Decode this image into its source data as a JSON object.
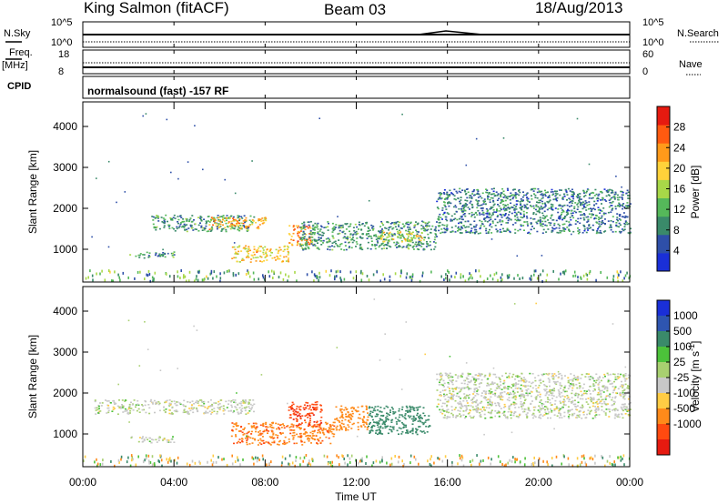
{
  "header": {
    "station": "King Salmon (fitACF)",
    "beam": "Beam 03",
    "date": "18/Aug/2013"
  },
  "top_panels": {
    "nsky_label": "N.Sky",
    "nsky_ticks": [
      "10^5",
      "10^0"
    ],
    "nsearch_label": "N.Search",
    "nsearch_ticks": [
      "10^5",
      "10^0"
    ],
    "freq_label": "Freq.",
    "freq_unit": "[MHz]",
    "freq_ticks": [
      "18",
      "8"
    ],
    "nave_label": "Nave",
    "nave_ticks": [
      "60",
      "0"
    ],
    "cpid_label": "CPID",
    "cpid_text": "normalsound (fast) -157 RF"
  },
  "chart_data": [
    {
      "type": "heatmap",
      "panel": "power",
      "ylabel": "Slant Range [km]",
      "xlabel": "",
      "xlim": [
        "00:00",
        "24:00"
      ],
      "ylim": [
        200,
        4600
      ],
      "y_ticks": [
        1000,
        2000,
        3000,
        4000
      ],
      "colorbar": {
        "label": "Power [dB]",
        "ticks": [
          4,
          8,
          12,
          16,
          20,
          24,
          28
        ],
        "range": [
          0,
          32
        ],
        "colors": [
          "#1a2fd8",
          "#2e4fa8",
          "#3a8a6a",
          "#55b85a",
          "#a8d848",
          "#ffd23a",
          "#ff9a1a",
          "#ff5a10",
          "#e61a10"
        ]
      },
      "echo_regions": [
        {
          "t_start": 3.0,
          "t_end": 7.5,
          "range_low": 1450,
          "range_high": 1850,
          "power_dB": 10
        },
        {
          "t_start": 5.5,
          "t_end": 8.0,
          "range_low": 1500,
          "range_high": 1800,
          "power_dB": 22
        },
        {
          "t_start": 6.5,
          "t_end": 9.0,
          "range_low": 700,
          "range_high": 1100,
          "power_dB": 20
        },
        {
          "t_start": 9.0,
          "t_end": 10.0,
          "range_low": 1100,
          "range_high": 1600,
          "power_dB": 24
        },
        {
          "t_start": 9.5,
          "t_end": 15.5,
          "range_low": 1000,
          "range_high": 1700,
          "power_dB": 10
        },
        {
          "t_start": 13.0,
          "t_end": 15.0,
          "range_low": 1200,
          "range_high": 1450,
          "power_dB": 18
        },
        {
          "t_start": 15.5,
          "t_end": 24.0,
          "range_low": 1400,
          "range_high": 2500,
          "power_dB": 8
        },
        {
          "t_start": 2.0,
          "t_end": 4.0,
          "range_low": 800,
          "range_high": 950,
          "power_dB": 10
        }
      ]
    },
    {
      "type": "heatmap",
      "panel": "velocity",
      "ylabel": "Slant Range [km]",
      "xlabel": "Time UT",
      "xlim": [
        "00:00",
        "24:00"
      ],
      "ylim": [
        200,
        4600
      ],
      "x_ticks": [
        "00:00",
        "04:00",
        "08:00",
        "12:00",
        "16:00",
        "20:00",
        "00:00"
      ],
      "y_ticks": [
        1000,
        2000,
        3000,
        4000
      ],
      "colorbar": {
        "label": "Velocity [m s",
        "label_sup": "-1",
        "label_end": "]",
        "ticks": [
          "1000",
          "500",
          "100",
          "25",
          "-25",
          "-100",
          "-500",
          "-1000"
        ],
        "colors": [
          "#1a2fd8",
          "#2e55b0",
          "#3a8a6a",
          "#4cc23a",
          "#a8d070",
          "#c8c8c8",
          "#ffcc44",
          "#ff8a1a",
          "#ff4a10",
          "#e61a10"
        ]
      },
      "echo_regions": [
        {
          "t_start": 0.5,
          "t_end": 7.5,
          "range_low": 1500,
          "range_high": 1850,
          "velocity": 0
        },
        {
          "t_start": 2.0,
          "t_end": 4.0,
          "range_low": 800,
          "range_high": 950,
          "velocity": 0
        },
        {
          "t_start": 6.5,
          "t_end": 11.0,
          "range_low": 750,
          "range_high": 1300,
          "velocity": -250
        },
        {
          "t_start": 9.0,
          "t_end": 10.5,
          "range_low": 1200,
          "range_high": 1800,
          "velocity": -600
        },
        {
          "t_start": 11.0,
          "t_end": 12.5,
          "range_low": 1100,
          "range_high": 1700,
          "velocity": -100
        },
        {
          "t_start": 12.5,
          "t_end": 15.2,
          "range_low": 1000,
          "range_high": 1700,
          "velocity": 150
        },
        {
          "t_start": 15.5,
          "t_end": 24.0,
          "range_low": 1400,
          "range_high": 2500,
          "velocity": 0
        }
      ]
    }
  ]
}
